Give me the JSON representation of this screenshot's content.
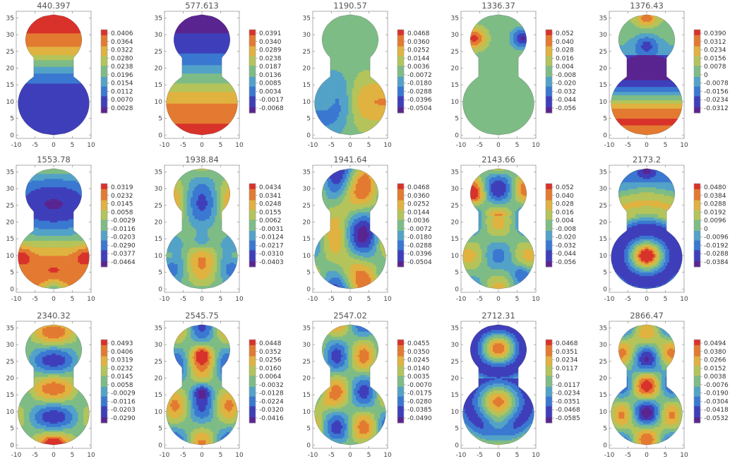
{
  "palette": [
    "#5a2590",
    "#3f3fbb",
    "#3a78d1",
    "#53a2c8",
    "#7ebc86",
    "#b4c45a",
    "#e0b240",
    "#e37a31",
    "#d8322b"
  ],
  "chart_data": [
    {
      "type": "heatmap",
      "title": "440.397",
      "mode": 0,
      "ticks": [
        "0.0406",
        "0.0364",
        "0.0322",
        "0.0280",
        "0.0238",
        "0.0196",
        "0.0154",
        "0.0112",
        "0.0070",
        "0.0028"
      ],
      "xticks": [
        "-10",
        "-5",
        "0",
        "5",
        "10"
      ],
      "yticks": [
        "0",
        "5",
        "10",
        "15",
        "20",
        "25",
        "30",
        "35"
      ],
      "xlim": [
        -10,
        10
      ],
      "ylim": [
        -1,
        37
      ]
    },
    {
      "type": "heatmap",
      "title": "577.613",
      "mode": 1,
      "ticks": [
        "0.0391",
        "0.0340",
        "0.0289",
        "0.0238",
        "0.0187",
        "0.0136",
        "0.0085",
        "0.0034",
        "-0.0017",
        "-0.0068"
      ],
      "xticks": [
        "-10",
        "-5",
        "0",
        "5",
        "10"
      ],
      "yticks": [
        "0",
        "5",
        "10",
        "15",
        "20",
        "25",
        "30",
        "35"
      ],
      "xlim": [
        -10,
        10
      ],
      "ylim": [
        -1,
        37
      ]
    },
    {
      "type": "heatmap",
      "title": "1190.57",
      "mode": 2,
      "ticks": [
        "0.0468",
        "0.0360",
        "0.0252",
        "0.0144",
        "0.0036",
        "-0.0072",
        "-0.0180",
        "-0.0288",
        "-0.0396",
        "-0.0504"
      ],
      "xticks": [
        "-10",
        "-5",
        "0",
        "5",
        "10"
      ],
      "yticks": [
        "0",
        "5",
        "10",
        "15",
        "20",
        "25",
        "30",
        "35"
      ],
      "xlim": [
        -10,
        10
      ],
      "ylim": [
        -1,
        37
      ]
    },
    {
      "type": "heatmap",
      "title": "1336.37",
      "mode": 3,
      "ticks": [
        "0.052",
        "0.040",
        "0.028",
        "0.016",
        "0.004",
        "-0.008",
        "-0.020",
        "-0.032",
        "-0.044",
        "-0.056"
      ],
      "xticks": [
        "-10",
        "-5",
        "0",
        "5",
        "10"
      ],
      "yticks": [
        "0",
        "5",
        "10",
        "15",
        "20",
        "25",
        "30",
        "35"
      ],
      "xlim": [
        -10,
        10
      ],
      "ylim": [
        -1,
        37
      ]
    },
    {
      "type": "heatmap",
      "title": "1376.43",
      "mode": 4,
      "ticks": [
        "0.0390",
        "0.0312",
        "0.0234",
        "0.0156",
        "0.0078",
        "0",
        "-0.0078",
        "-0.0156",
        "-0.0234",
        "-0.0312"
      ],
      "xticks": [
        "-10",
        "-5",
        "0",
        "5",
        "10"
      ],
      "yticks": [
        "0",
        "5",
        "10",
        "15",
        "20",
        "25",
        "30",
        "35"
      ],
      "xlim": [
        -10,
        10
      ],
      "ylim": [
        -1,
        37
      ]
    },
    {
      "type": "heatmap",
      "title": "1553.78",
      "mode": 5,
      "ticks": [
        "0.0319",
        "0.0232",
        "0.0145",
        "0.0058",
        "-0.0029",
        "-0.0116",
        "-0.0203",
        "-0.0290",
        "-0.0377",
        "-0.0464"
      ],
      "xticks": [
        "-10",
        "-5",
        "0",
        "5",
        "10"
      ],
      "yticks": [
        "0",
        "5",
        "10",
        "15",
        "20",
        "25",
        "30",
        "35"
      ],
      "xlim": [
        -10,
        10
      ],
      "ylim": [
        -1,
        37
      ]
    },
    {
      "type": "heatmap",
      "title": "1938.84",
      "mode": 6,
      "ticks": [
        "0.0434",
        "0.0341",
        "0.0248",
        "0.0155",
        "0.0062",
        "-0.0031",
        "-0.0124",
        "-0.0217",
        "-0.0310",
        "-0.0403"
      ],
      "xticks": [
        "-10",
        "-5",
        "0",
        "5",
        "10"
      ],
      "yticks": [
        "0",
        "5",
        "10",
        "15",
        "20",
        "25",
        "30",
        "35"
      ],
      "xlim": [
        -10,
        10
      ],
      "ylim": [
        -1,
        37
      ]
    },
    {
      "type": "heatmap",
      "title": "1941.64",
      "mode": 7,
      "ticks": [
        "0.0468",
        "0.0360",
        "0.0252",
        "0.0144",
        "0.0036",
        "-0.0072",
        "-0.0180",
        "-0.0288",
        "-0.0396",
        "-0.0504"
      ],
      "xticks": [
        "-10",
        "-5",
        "0",
        "5",
        "10"
      ],
      "yticks": [
        "0",
        "5",
        "10",
        "15",
        "20",
        "25",
        "30",
        "35"
      ],
      "xlim": [
        -10,
        10
      ],
      "ylim": [
        -1,
        37
      ]
    },
    {
      "type": "heatmap",
      "title": "2143.66",
      "mode": 8,
      "ticks": [
        "0.052",
        "0.040",
        "0.028",
        "0.016",
        "0.004",
        "-0.008",
        "-0.020",
        "-0.032",
        "-0.044",
        "-0.056"
      ],
      "xticks": [
        "-10",
        "-5",
        "0",
        "5",
        "10"
      ],
      "yticks": [
        "0",
        "5",
        "10",
        "15",
        "20",
        "25",
        "30",
        "35"
      ],
      "xlim": [
        -10,
        10
      ],
      "ylim": [
        -1,
        37
      ]
    },
    {
      "type": "heatmap",
      "title": "2173.2",
      "mode": 9,
      "ticks": [
        "0.0480",
        "0.0384",
        "0.0288",
        "0.0192",
        "0.0096",
        "0",
        "-0.0096",
        "-0.0192",
        "-0.0288",
        "-0.0384"
      ],
      "xticks": [
        "-10",
        "-5",
        "0",
        "5",
        "10"
      ],
      "yticks": [
        "0",
        "5",
        "10",
        "15",
        "20",
        "25",
        "30",
        "35"
      ],
      "xlim": [
        -10,
        10
      ],
      "ylim": [
        -1,
        37
      ]
    },
    {
      "type": "heatmap",
      "title": "2340.32",
      "mode": 10,
      "ticks": [
        "0.0493",
        "0.0406",
        "0.0319",
        "0.0232",
        "0.0145",
        "0.0058",
        "-0.0029",
        "-0.0116",
        "-0.0203",
        "-0.0290"
      ],
      "xticks": [
        "-10",
        "-5",
        "0",
        "5",
        "10"
      ],
      "yticks": [
        "0",
        "5",
        "10",
        "15",
        "20",
        "25",
        "30",
        "35"
      ],
      "xlim": [
        -10,
        10
      ],
      "ylim": [
        -1,
        37
      ]
    },
    {
      "type": "heatmap",
      "title": "2545.75",
      "mode": 11,
      "ticks": [
        "0.0448",
        "0.0352",
        "0.0256",
        "0.0160",
        "0.0064",
        "-0.0032",
        "-0.0128",
        "-0.0224",
        "-0.0320",
        "-0.0416"
      ],
      "xticks": [
        "-10",
        "-5",
        "0",
        "5",
        "10"
      ],
      "yticks": [
        "0",
        "5",
        "10",
        "15",
        "20",
        "25",
        "30",
        "35"
      ],
      "xlim": [
        -10,
        10
      ],
      "ylim": [
        -1,
        37
      ]
    },
    {
      "type": "heatmap",
      "title": "2547.02",
      "mode": 12,
      "ticks": [
        "0.0455",
        "0.0350",
        "0.0245",
        "0.0140",
        "0.0035",
        "-0.0070",
        "-0.0175",
        "-0.0280",
        "-0.0385",
        "-0.0490"
      ],
      "xticks": [
        "-10",
        "-5",
        "0",
        "5",
        "10"
      ],
      "yticks": [
        "0",
        "5",
        "10",
        "15",
        "20",
        "25",
        "30",
        "35"
      ],
      "xlim": [
        -10,
        10
      ],
      "ylim": [
        -1,
        37
      ]
    },
    {
      "type": "heatmap",
      "title": "2712.31",
      "mode": 13,
      "ticks": [
        "0.0468",
        "0.0351",
        "0.0234",
        "0.0117",
        "0",
        "-0.0117",
        "-0.0234",
        "-0.0351",
        "-0.0468",
        "-0.0585"
      ],
      "xticks": [
        "-10",
        "-5",
        "0",
        "5",
        "10"
      ],
      "yticks": [
        "0",
        "5",
        "10",
        "15",
        "20",
        "25",
        "30",
        "35"
      ],
      "xlim": [
        -10,
        10
      ],
      "ylim": [
        -1,
        37
      ]
    },
    {
      "type": "heatmap",
      "title": "2866.47",
      "mode": 14,
      "ticks": [
        "0.0494",
        "0.0380",
        "0.0266",
        "0.0152",
        "0.0038",
        "-0.0076",
        "-0.0190",
        "-0.0304",
        "-0.0418",
        "-0.0532"
      ],
      "xticks": [
        "-10",
        "-5",
        "0",
        "5",
        "10"
      ],
      "yticks": [
        "0",
        "5",
        "10",
        "15",
        "20",
        "25",
        "30",
        "35"
      ],
      "xlim": [
        -10,
        10
      ],
      "ylim": [
        -1,
        37
      ]
    }
  ]
}
